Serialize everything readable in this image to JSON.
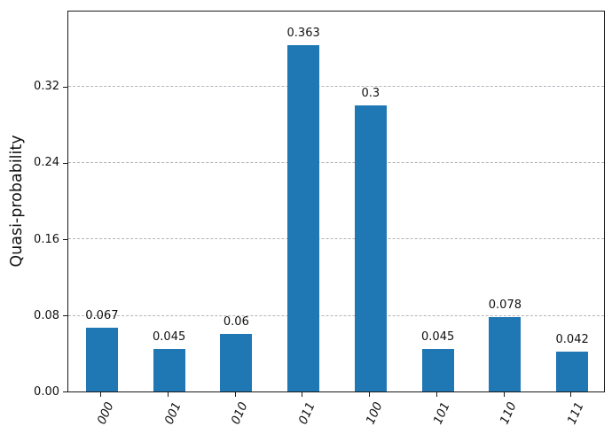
{
  "chart_data": {
    "type": "bar",
    "title": "",
    "categories": [
      "000",
      "001",
      "010",
      "011",
      "100",
      "101",
      "110",
      "111"
    ],
    "values": [
      0.067,
      0.045,
      0.06,
      0.363,
      0.3,
      0.045,
      0.078,
      0.042
    ],
    "bar_value_labels": [
      "0.067",
      "0.045",
      "0.06",
      "0.363",
      "0.3",
      "0.045",
      "0.078",
      "0.042"
    ],
    "xlabel": "",
    "ylabel": "Quasi-probability",
    "ytick_labels": [
      "0.00",
      "0.08",
      "0.16",
      "0.24",
      "0.32"
    ],
    "yticks": [
      0.0,
      0.08,
      0.16,
      0.24,
      0.32
    ],
    "ylim": [
      0.0,
      0.4
    ],
    "grid": {
      "axis": "y",
      "style": "dashed",
      "color": "#b8b2bc"
    },
    "bar_color": "#1f77b4",
    "frame_color": "#1a1a1a",
    "legend": null
  }
}
